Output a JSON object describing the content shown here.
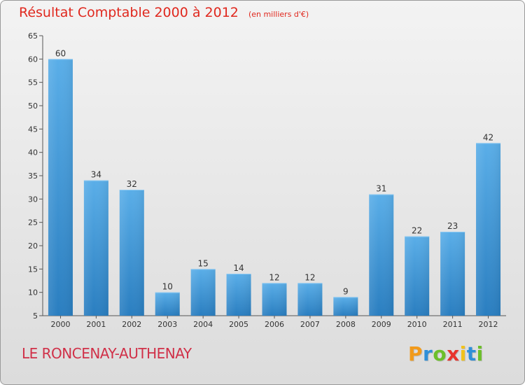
{
  "chart_data": {
    "type": "bar",
    "title": "Résultat Comptable 2000 à 2012",
    "subtitle": "(en milliers d'€)",
    "categories": [
      "2000",
      "2001",
      "2002",
      "2003",
      "2004",
      "2005",
      "2006",
      "2007",
      "2008",
      "2009",
      "2010",
      "2011",
      "2012"
    ],
    "values": [
      60,
      34,
      32,
      10,
      15,
      14,
      12,
      12,
      9,
      31,
      22,
      23,
      42
    ],
    "ylim": [
      5,
      65
    ],
    "yticks": [
      5,
      10,
      15,
      20,
      25,
      30,
      35,
      40,
      45,
      50,
      55,
      60,
      65
    ],
    "xlabel": "",
    "ylabel": "",
    "grid": false,
    "bar_color_top": "#5aaee8",
    "bar_color_bottom": "#2a7ec0"
  },
  "footer": {
    "commune": "LE RONCENAY-AUTHENAY",
    "logo_letters": [
      "P",
      "r",
      "o",
      "x",
      "i",
      "t",
      "i"
    ],
    "logo_colors": [
      "#f29a1a",
      "#2f8fd8",
      "#6cbf2a",
      "#e8342c",
      "#f2c21a",
      "#2f8fd8",
      "#6cbf2a"
    ]
  },
  "colors": {
    "title": "#e0281e",
    "commune": "#d03048",
    "axis": "#555555"
  }
}
